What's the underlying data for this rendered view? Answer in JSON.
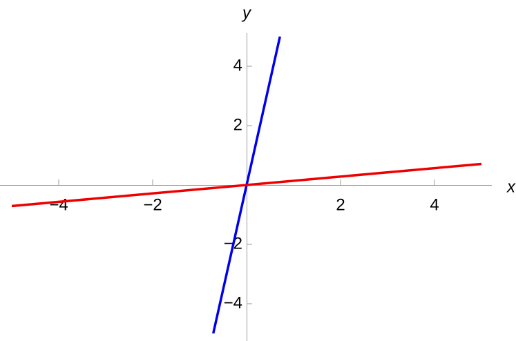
{
  "chart_data": {
    "type": "line",
    "x_label": "x",
    "y_label": "y",
    "xlim": [
      -5,
      5
    ],
    "ylim": [
      -5,
      5
    ],
    "xticks": [
      {
        "value": -4,
        "label": "−4"
      },
      {
        "value": -2,
        "label": "−2"
      },
      2,
      4
    ],
    "yticks": [
      {
        "value": -4,
        "label": "−4"
      },
      {
        "value": -2,
        "label": "−2"
      },
      2,
      4
    ],
    "series": [
      {
        "color": "#0000ee",
        "x": [
          -0.71,
          0.71
        ],
        "values": [
          -5,
          5
        ]
      },
      {
        "color": "#ee0000",
        "x": [
          -5,
          5
        ],
        "values": [
          -0.71,
          0.71
        ]
      }
    ]
  }
}
